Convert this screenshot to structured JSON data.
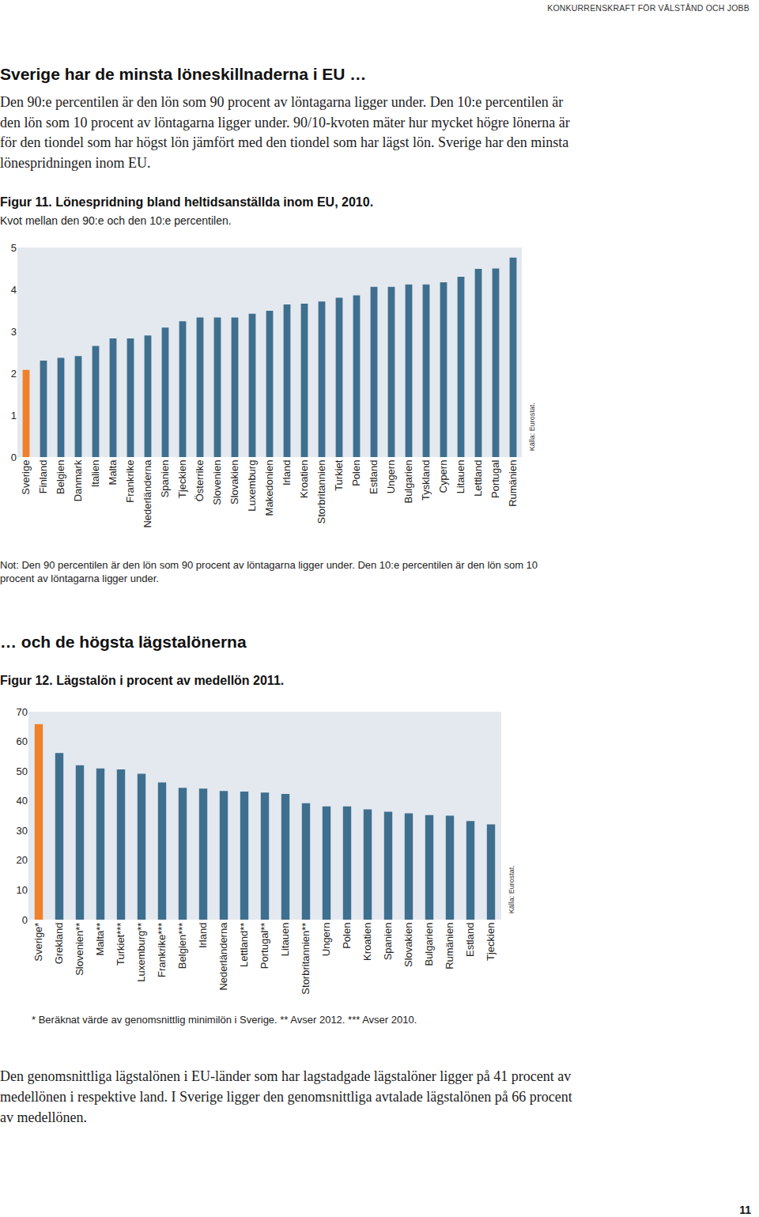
{
  "running_head": "KONKURRENSKRAFT FÖR VÄLSTÅND OCH JOBB",
  "heading1": "Sverige har de minsta löneskillnaderna i EU …",
  "paragraph1": "Den 90:e percentilen är den lön som 90 procent av löntagarna ligger under. Den 10:e percentilen är den lön som 10 procent av löntagarna ligger under. 90/10-kvoten mäter hur mycket högre lönerna är för den tiondel som har högst lön jämfört med den tiondel som har lägst lön. Sverige har den minsta lönespridningen inom EU.",
  "note1": "Not: Den 90 percentilen är den lön som 90 procent av löntagarna ligger under. Den 10:e percentilen är den lön som 10 procent av löntagarna ligger under.",
  "heading2": "… och de högsta lägstalönerna",
  "footnote2": "* Beräknat värde av genomsnittlig minimilön i Sverige. ** Avser 2012. *** Avser 2010.",
  "paragraph2": "Den genomsnittliga lägstalönen i EU-länder som har lagstadgade lägstalöner ligger på 41 procent av medellönen i respektive land. I Sverige ligger den genomsnittliga avtalade lägstalönen på 66 procent av medellönen.",
  "page_number": "11",
  "chart_data": [
    {
      "type": "bar",
      "title": "Figur 11. Lönespridning bland heltidsanställda inom EU, 2010.",
      "subtitle": "Kvot mellan den 90:e och den 10:e percentilen.",
      "annotations": [
        "Källa: Eurostat."
      ],
      "categories": [
        "Sverige",
        "Finland",
        "Belgien",
        "Danmark",
        "Italien",
        "Malta",
        "Frankrike",
        "Nederländerna",
        "Spanien",
        "Tjeckien",
        "Österrike",
        "Slovenien",
        "Slovakien",
        "Luxemburg",
        "Makedonien",
        "Irland",
        "Kroatien",
        "Storbritannien",
        "Turkiet",
        "Polen",
        "Estland",
        "Ungern",
        "Bulgarien",
        "Tyskland",
        "Cypern",
        "Litauen",
        "Lettland",
        "Portugal",
        "Rumänien"
      ],
      "values": [
        2.08,
        2.3,
        2.37,
        2.41,
        2.65,
        2.83,
        2.83,
        2.9,
        3.09,
        3.24,
        3.33,
        3.33,
        3.33,
        3.42,
        3.49,
        3.64,
        3.66,
        3.71,
        3.8,
        3.86,
        4.06,
        4.06,
        4.12,
        4.12,
        4.17,
        4.3,
        4.49,
        4.5,
        4.76
      ],
      "colors": [
        "#f0802a",
        "#3f6f8f",
        "#3f6f8f",
        "#3f6f8f",
        "#3f6f8f",
        "#3f6f8f",
        "#3f6f8f",
        "#3f6f8f",
        "#3f6f8f",
        "#3f6f8f",
        "#3f6f8f",
        "#3f6f8f",
        "#3f6f8f",
        "#3f6f8f",
        "#3f6f8f",
        "#3f6f8f",
        "#3f6f8f",
        "#3f6f8f",
        "#3f6f8f",
        "#3f6f8f",
        "#3f6f8f",
        "#3f6f8f",
        "#3f6f8f",
        "#3f6f8f",
        "#3f6f8f",
        "#3f6f8f",
        "#3f6f8f",
        "#3f6f8f",
        "#3f6f8f"
      ],
      "ylim": [
        0,
        5
      ],
      "yticks": [
        0,
        1,
        2,
        3,
        4,
        5
      ],
      "grid": false
    },
    {
      "type": "bar",
      "title": "Figur 12. Lägstalön i procent av medellön 2011.",
      "annotations": [
        "Källa: Eurostat."
      ],
      "categories": [
        "Sverige*",
        "Grekland",
        "Slovenien**",
        "Malta**",
        "Turkiet***",
        "Luxemburg**",
        "Frankrike***",
        "Belgien***",
        "Irland",
        "Nederländerna",
        "Lettland**",
        "Portugal**",
        "Litauen",
        "Storbritannien**",
        "Ungern",
        "Polen",
        "Kroatien",
        "Spanien",
        "Slovakien",
        "Bulgarien",
        "Rumänien",
        "Estland",
        "Tjeckien"
      ],
      "values": [
        65.8,
        56.1,
        52,
        50.9,
        50.6,
        49.1,
        46.2,
        44.4,
        44.1,
        43.3,
        43.1,
        42.8,
        42.3,
        39.2,
        38.1,
        38.1,
        37.1,
        36.3,
        35.8,
        35.2,
        35,
        33.2,
        32.1
      ],
      "colors": [
        "#f0802a",
        "#3f6f8f",
        "#3f6f8f",
        "#3f6f8f",
        "#3f6f8f",
        "#3f6f8f",
        "#3f6f8f",
        "#3f6f8f",
        "#3f6f8f",
        "#3f6f8f",
        "#3f6f8f",
        "#3f6f8f",
        "#3f6f8f",
        "#3f6f8f",
        "#3f6f8f",
        "#3f6f8f",
        "#3f6f8f",
        "#3f6f8f",
        "#3f6f8f",
        "#3f6f8f",
        "#3f6f8f",
        "#3f6f8f",
        "#3f6f8f"
      ],
      "ylim": [
        0,
        70
      ],
      "yticks": [
        0,
        10,
        20,
        30,
        40,
        50,
        60,
        70
      ],
      "grid": false
    }
  ]
}
